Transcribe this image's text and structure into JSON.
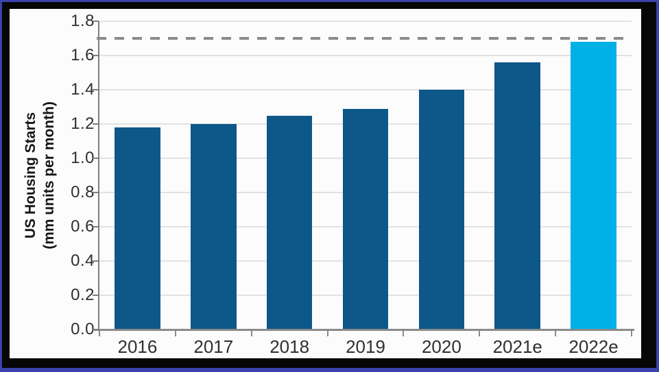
{
  "chart_data": {
    "type": "bar",
    "title": "",
    "categories": [
      "2016",
      "2017",
      "2018",
      "2019",
      "2020",
      "2021e",
      "2022e"
    ],
    "values": [
      1.18,
      1.2,
      1.25,
      1.29,
      1.4,
      1.56,
      1.68
    ],
    "highlight_index": 6,
    "ylabel_line1": "US Housing Starts",
    "ylabel_line2": "(mm units per month)",
    "xlabel": "",
    "ylim": [
      0,
      1.8
    ],
    "ytick_labels": [
      "0.0",
      "0.2",
      "0.4",
      "0.6",
      "0.8",
      "1.0",
      "1.2",
      "1.4",
      "1.6",
      "1.8"
    ],
    "ytick_values": [
      0.0,
      0.2,
      0.4,
      0.6,
      0.8,
      1.0,
      1.2,
      1.4,
      1.6,
      1.8
    ],
    "reference_line": {
      "value": 1.7,
      "style": "dashed"
    },
    "grid": "horizontal",
    "legend": "none",
    "colors": {
      "bar_default": "#0e5789",
      "bar_highlight": "#00b1e8",
      "gridline": "#e2e2e2",
      "axis": "#8a8a8a",
      "reference_dash": "#8a8a8a",
      "tick_text": "#2f2f2f",
      "frame_black": "#060606",
      "frame_navy": "#3b42ab",
      "panel_background": "#fcfcfc"
    }
  }
}
